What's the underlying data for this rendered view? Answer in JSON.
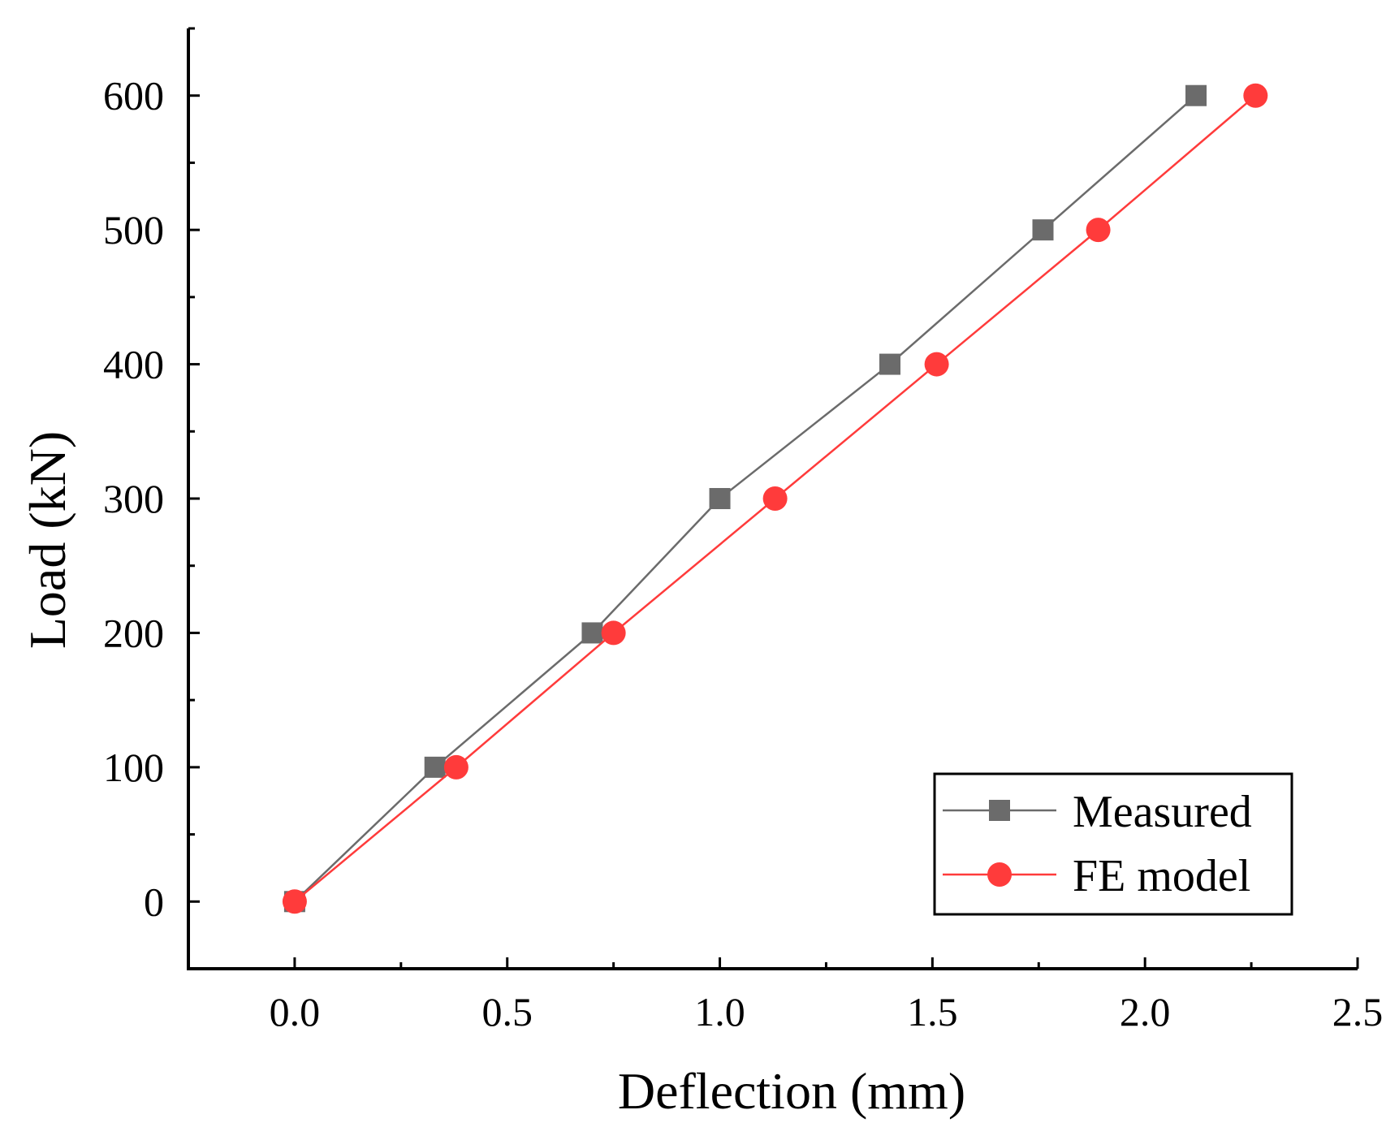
{
  "chart_data": {
    "type": "line",
    "title": "",
    "xlabel": "Deflection (mm)",
    "ylabel": "Load (kN)",
    "xlim": [
      -0.25,
      2.5
    ],
    "ylim": [
      -50,
      650
    ],
    "xticks": [
      0.0,
      0.5,
      1.0,
      1.5,
      2.0,
      2.5
    ],
    "xtick_labels": [
      "0.0",
      "0.5",
      "1.0",
      "1.5",
      "2.0",
      "2.5"
    ],
    "yticks": [
      0,
      100,
      200,
      300,
      400,
      500,
      600
    ],
    "ytick_labels": [
      "0",
      "100",
      "200",
      "300",
      "400",
      "500",
      "600"
    ],
    "grid": false,
    "legend_position": "bottom-right",
    "series": [
      {
        "name": "Measured",
        "marker": "square",
        "color": "#6b6b6b",
        "x": [
          0.0,
          0.33,
          0.7,
          1.0,
          1.4,
          1.76,
          2.12
        ],
        "y": [
          0,
          100,
          200,
          300,
          400,
          500,
          600
        ]
      },
      {
        "name": "FE model",
        "marker": "circle",
        "color": "#ff3b3b",
        "x": [
          0.0,
          0.38,
          0.75,
          1.13,
          1.51,
          1.89,
          2.26
        ],
        "y": [
          0,
          100,
          200,
          300,
          400,
          500,
          600
        ]
      }
    ]
  }
}
